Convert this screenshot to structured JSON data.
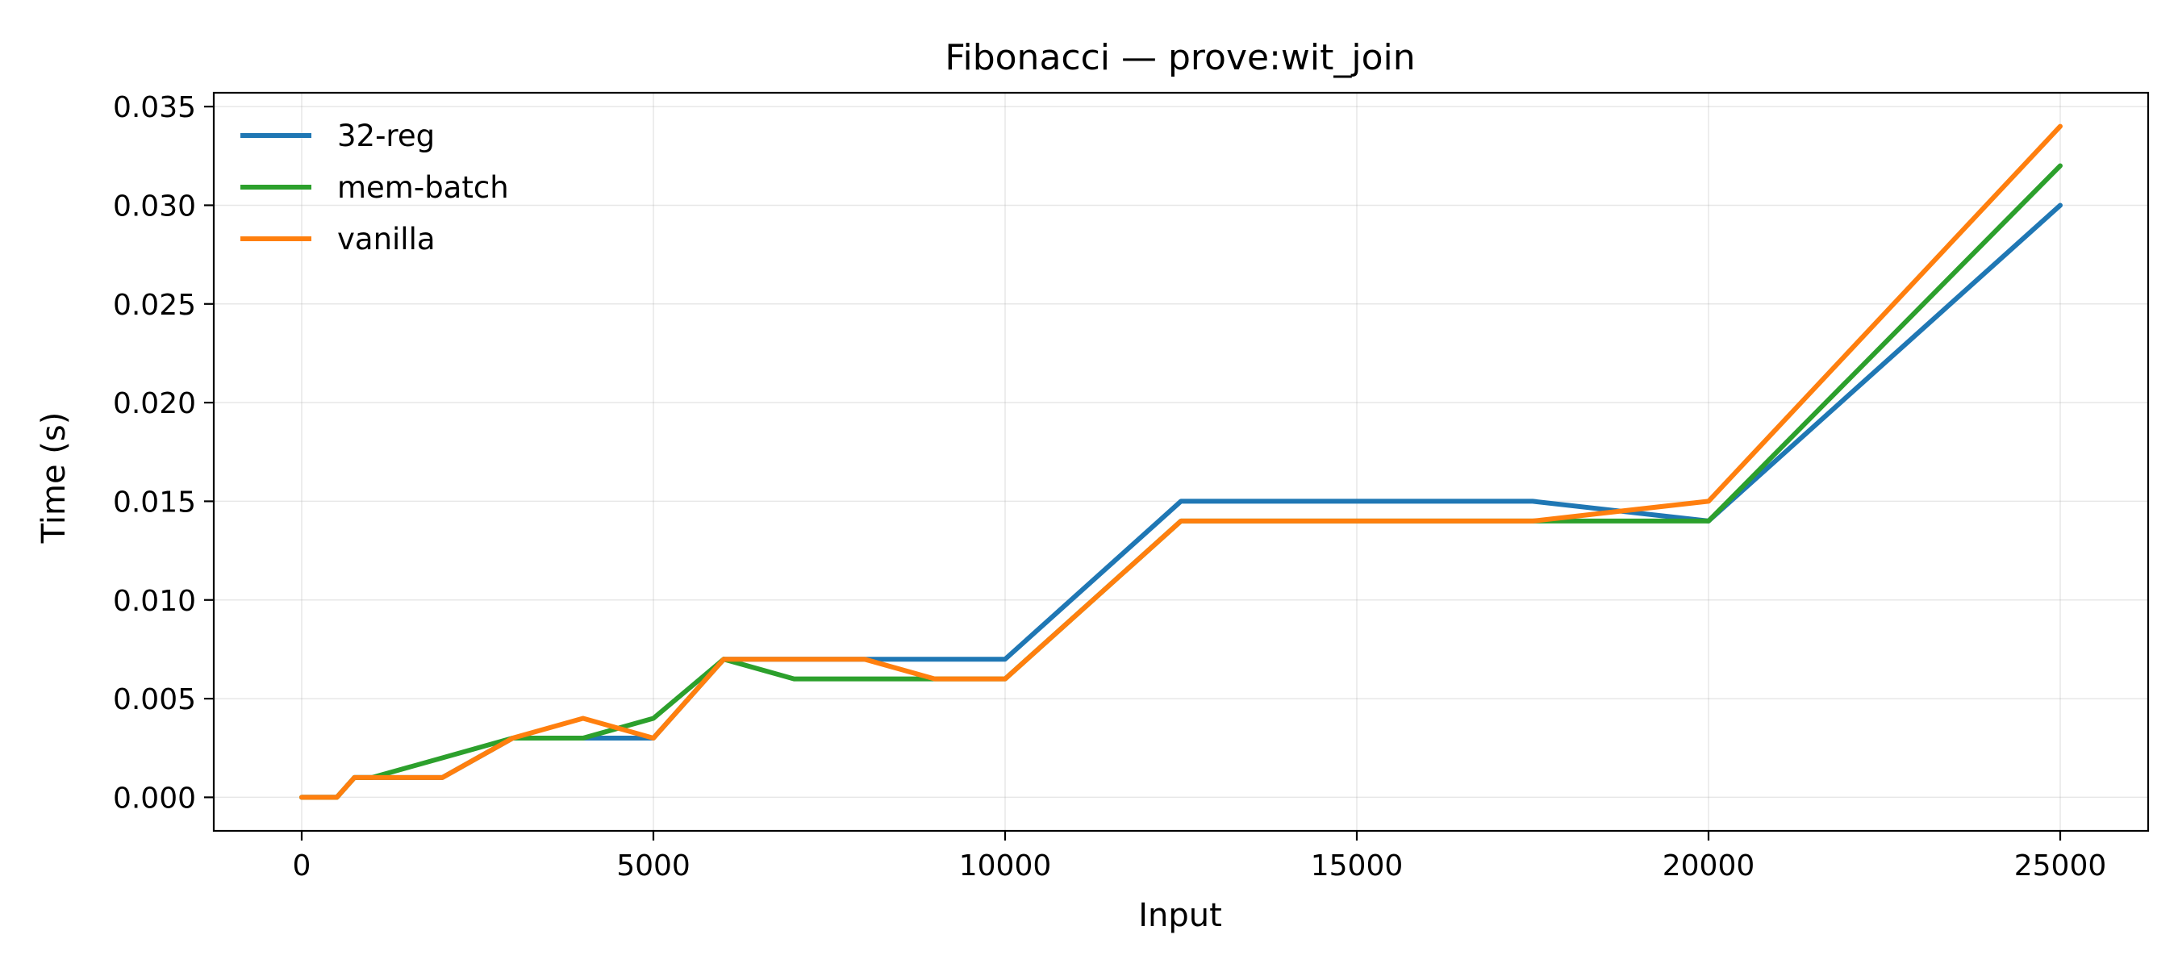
{
  "chart_data": {
    "type": "line",
    "title": "Fibonacci — prove:wit_join",
    "xlabel": "Input",
    "ylabel": "Time (s)",
    "xlim": [
      -1250,
      26250
    ],
    "ylim": [
      -0.0017,
      0.0357
    ],
    "xticks": [
      0,
      5000,
      10000,
      15000,
      20000,
      25000
    ],
    "xtick_labels": [
      "0",
      "5000",
      "10000",
      "15000",
      "20000",
      "25000"
    ],
    "yticks": [
      0.0,
      0.005,
      0.01,
      0.015,
      0.02,
      0.025,
      0.03,
      0.035
    ],
    "ytick_labels": [
      "0.000",
      "0.005",
      "0.010",
      "0.015",
      "0.020",
      "0.025",
      "0.030",
      "0.035"
    ],
    "grid": true,
    "legend_position": "upper-left",
    "series": [
      {
        "name": "32-reg",
        "color": "#1f77b4",
        "x": [
          0,
          500,
          750,
          1000,
          2000,
          3000,
          4000,
          5000,
          6000,
          7000,
          8000,
          9000,
          10000,
          12500,
          15000,
          17500,
          20000,
          25000
        ],
        "y": [
          0.0,
          0.0,
          0.001,
          0.001,
          0.001,
          0.003,
          0.003,
          0.003,
          0.007,
          0.007,
          0.007,
          0.007,
          0.007,
          0.015,
          0.015,
          0.015,
          0.014,
          0.03
        ]
      },
      {
        "name": "mem-batch",
        "color": "#2ca02c",
        "x": [
          0,
          500,
          750,
          1000,
          2000,
          3000,
          4000,
          5000,
          6000,
          7000,
          8000,
          9000,
          10000,
          12500,
          15000,
          17500,
          20000,
          25000
        ],
        "y": [
          0.0,
          0.0,
          0.001,
          0.001,
          0.002,
          0.003,
          0.003,
          0.004,
          0.007,
          0.006,
          0.006,
          0.006,
          0.006,
          0.014,
          0.014,
          0.014,
          0.014,
          0.032
        ]
      },
      {
        "name": "vanilla",
        "color": "#ff7f0e",
        "x": [
          0,
          500,
          750,
          1000,
          2000,
          3000,
          4000,
          5000,
          6000,
          7000,
          8000,
          9000,
          10000,
          12500,
          15000,
          17500,
          20000,
          25000
        ],
        "y": [
          0.0,
          0.0,
          0.001,
          0.001,
          0.001,
          0.003,
          0.004,
          0.003,
          0.007,
          0.007,
          0.007,
          0.006,
          0.006,
          0.014,
          0.014,
          0.014,
          0.015,
          0.034
        ]
      }
    ]
  }
}
